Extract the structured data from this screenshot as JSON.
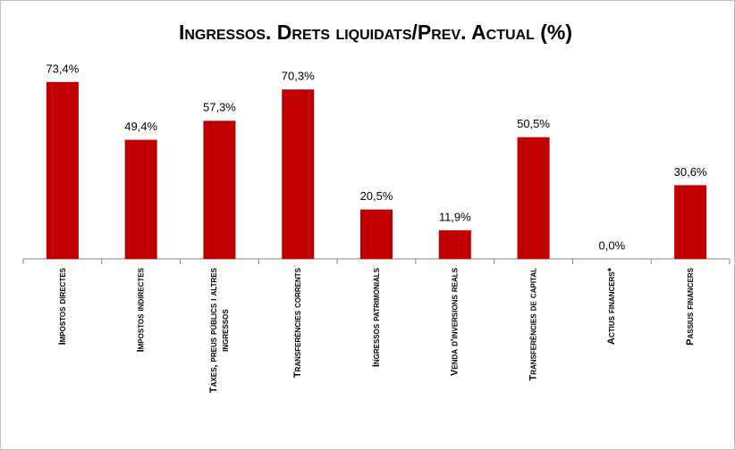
{
  "chart_data": {
    "type": "bar",
    "title": "Ingressos. Drets liquidats/Prev. Actual (%)",
    "categories": [
      "Impostos directes",
      "Impostos indirectes",
      "Taxes, preus públics i altres ingressos",
      "Transferències corrents",
      "Ingressos patrimonials",
      "Venda d'inversions reals",
      "Transferències de capital",
      "Actius financers*",
      "Passius financers"
    ],
    "values": [
      73.4,
      49.4,
      57.3,
      70.3,
      20.5,
      11.9,
      50.5,
      0.0,
      30.6
    ],
    "value_labels": [
      "73,4%",
      "49,4%",
      "57,3%",
      "70,3%",
      "20,5%",
      "11,9%",
      "50,5%",
      "0,0%",
      "30,6%"
    ],
    "color": "#c00000",
    "ylim": [
      0,
      80
    ]
  }
}
